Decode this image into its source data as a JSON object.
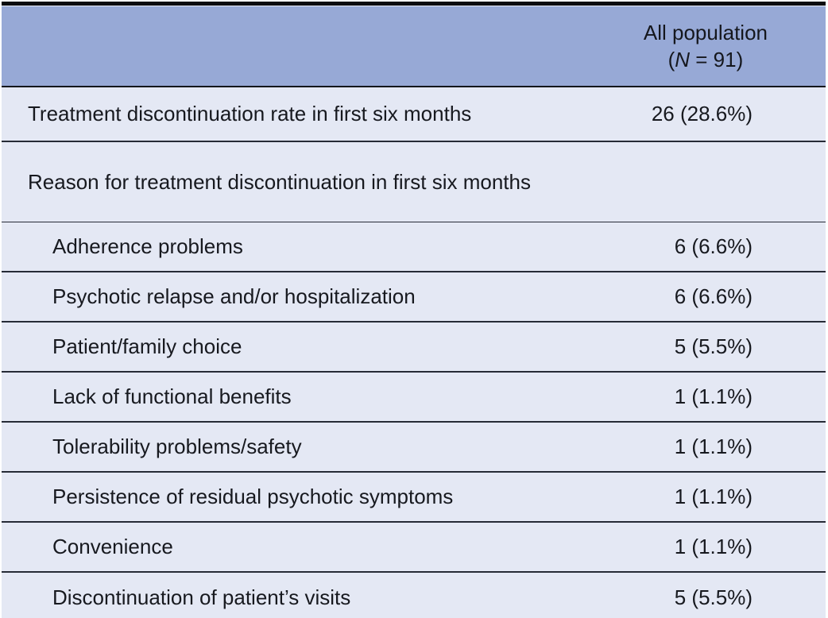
{
  "table": {
    "header": {
      "population_line1": "All population",
      "n_open": "(",
      "n_symbol": "N",
      "n_rest": " = 91)"
    },
    "rows": [
      {
        "label": "Treatment discontinuation rate in first six months",
        "value": "26 (28.6%)",
        "indent": 0
      },
      {
        "label": "Reason for treatment discontinuation in first six months",
        "value": "",
        "indent": 0
      },
      {
        "label": "Adherence problems",
        "value": "6 (6.6%)",
        "indent": 1
      },
      {
        "label": "Psychotic relapse and/or hospitalization",
        "value": "6 (6.6%)",
        "indent": 1
      },
      {
        "label": "Patient/family choice",
        "value": "5 (5.5%)",
        "indent": 1
      },
      {
        "label": "Lack of functional benefits",
        "value": "1 (1.1%)",
        "indent": 1
      },
      {
        "label": "Tolerability problems/safety",
        "value": "1 (1.1%)",
        "indent": 1
      },
      {
        "label": "Persistence of residual psychotic symptoms",
        "value": "1 (1.1%)",
        "indent": 1
      },
      {
        "label": "Convenience",
        "value": "1 (1.1%)",
        "indent": 1
      },
      {
        "label": "Discontinuation of patient’s visits",
        "value": "5 (5.5%)",
        "indent": 1
      }
    ],
    "colors": {
      "header_bg": "#97a9d6",
      "body_bg": "#e4e8f4",
      "rule_dark": "#262b36",
      "frame_black": "#0b0c0f"
    }
  }
}
